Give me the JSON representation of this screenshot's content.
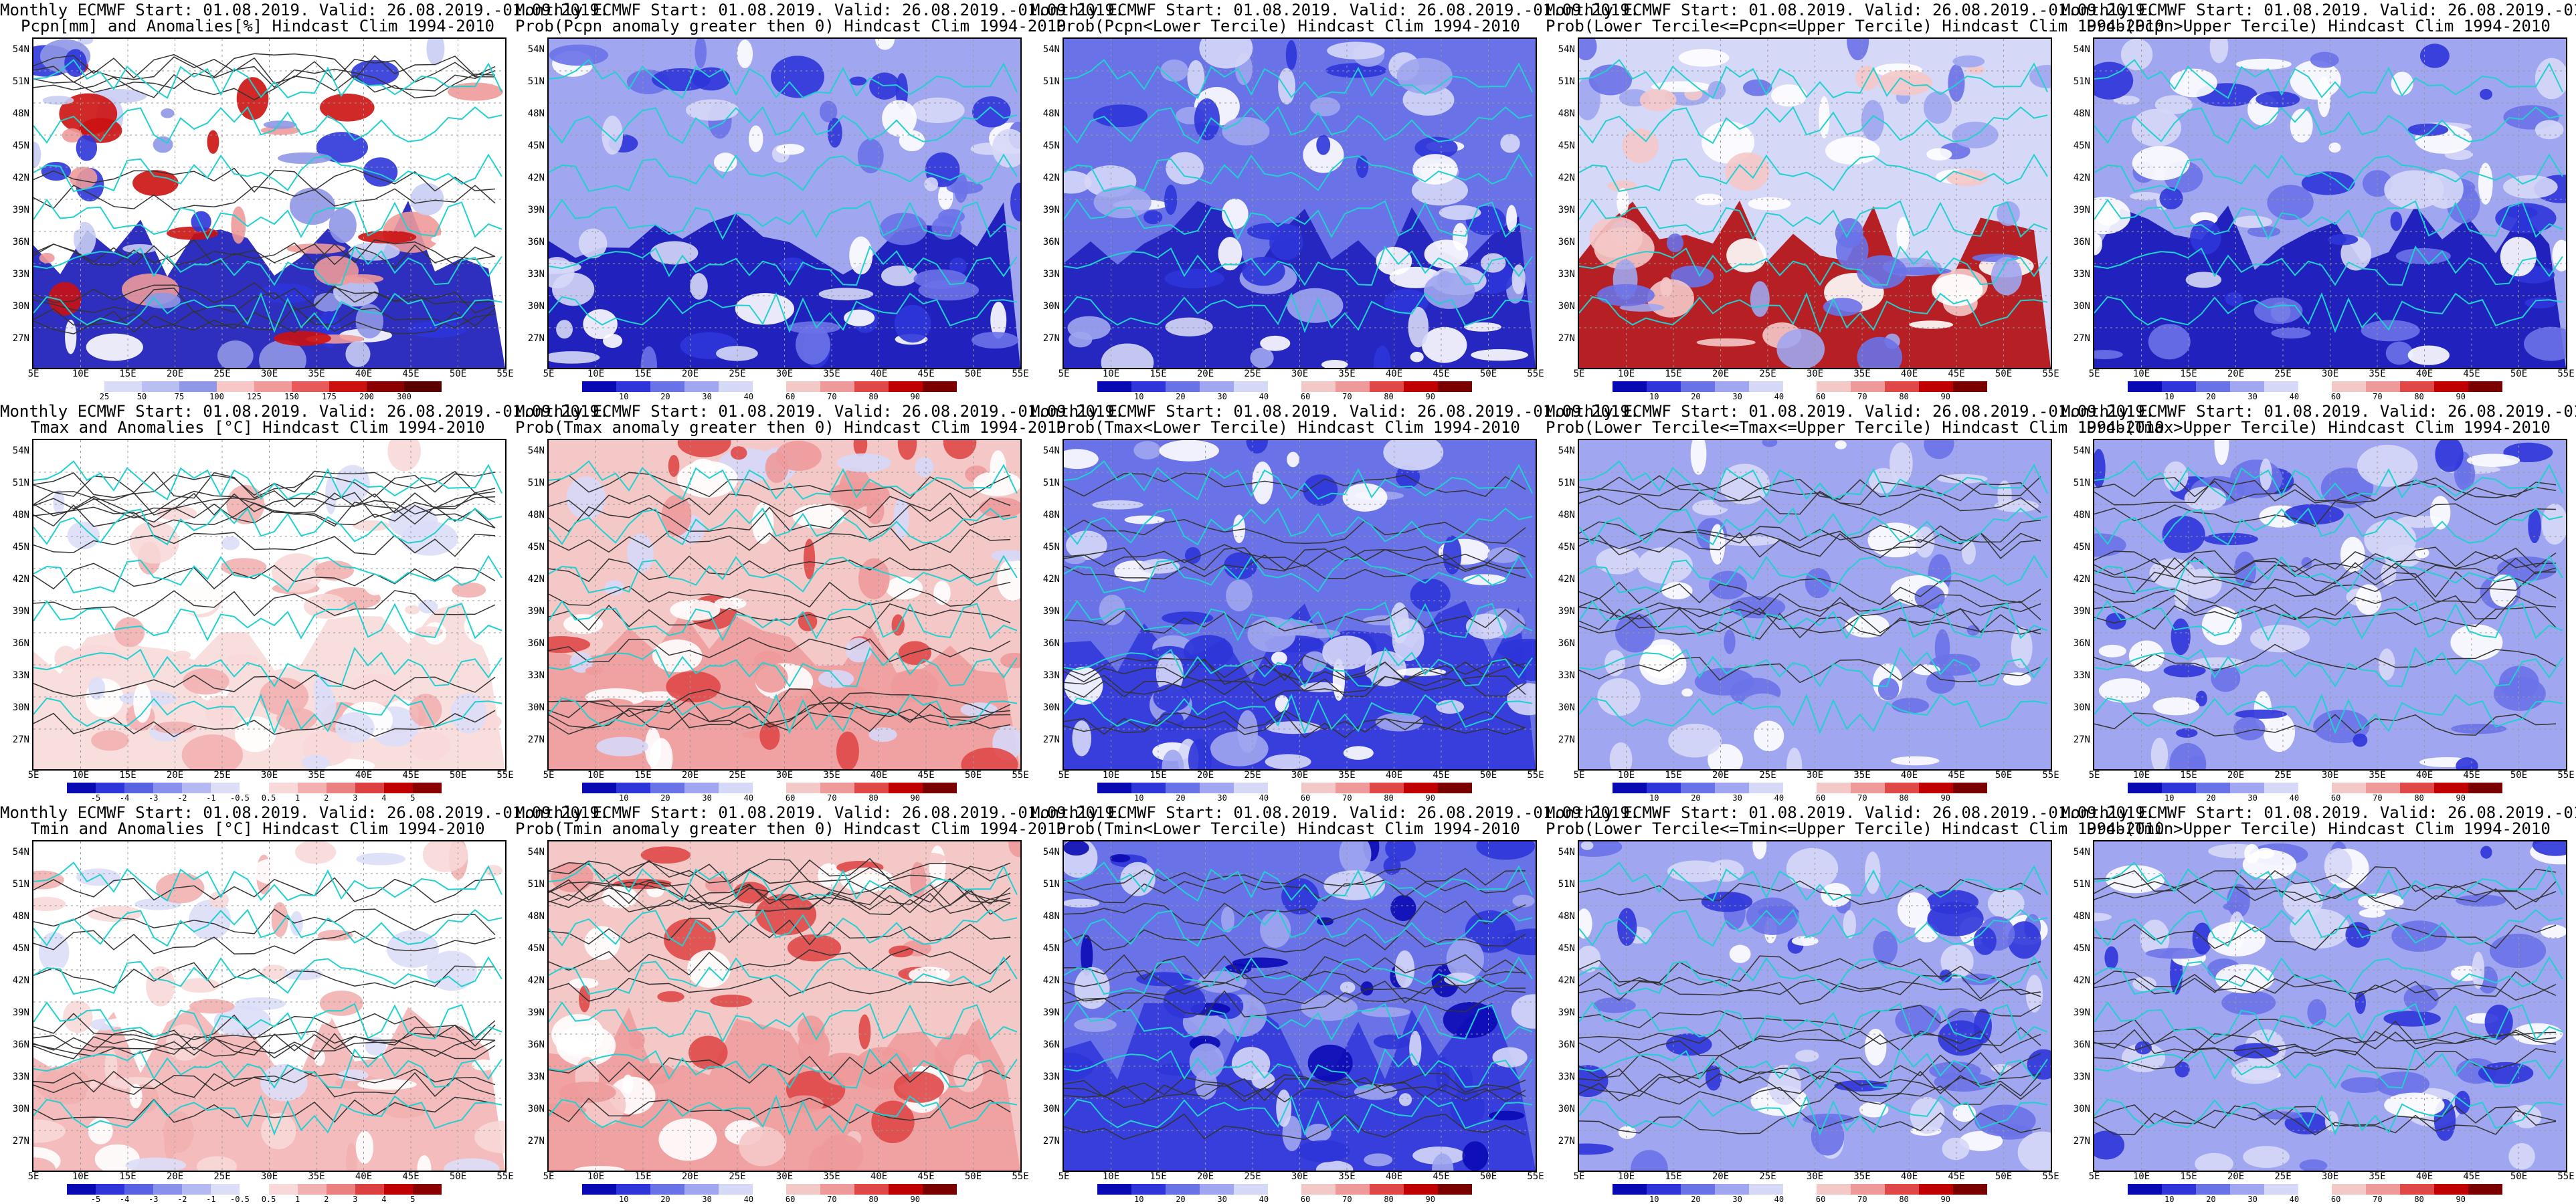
{
  "header_line": "Monthly ECMWF Start: 01.08.2019. Valid: 26.08.2019.-01.09.2019.",
  "lat_labels": [
    "54N",
    "51N",
    "48N",
    "45N",
    "42N",
    "39N",
    "36N",
    "33N",
    "30N",
    "27N"
  ],
  "lon_labels": [
    "5E",
    "10E",
    "15E",
    "20E",
    "25E",
    "30E",
    "35E",
    "40E",
    "45E",
    "50E",
    "55E"
  ],
  "colorbars": {
    "pcpn": {
      "ticks": [
        "25",
        "50",
        "75",
        "100",
        "125",
        "150",
        "175",
        "200",
        "300"
      ],
      "colors": [
        "#ffffff",
        "#d9dcf6",
        "#b9bff0",
        "#8f97e6",
        "#f7c7c7",
        "#f09a9a",
        "#e85a5a",
        "#cc1111",
        "#8b0000",
        "#5a0000"
      ]
    },
    "prob": {
      "ticks": [
        "10",
        "20",
        "30",
        "40",
        "60",
        "70",
        "80",
        "90"
      ],
      "colors": [
        "#0a0ab4",
        "#2e35d9",
        "#6a72e8",
        "#a0a6f0",
        "#d6d8f7",
        "#ffffff",
        "#f5c8c8",
        "#ee9a9a",
        "#e04848",
        "#c00000",
        "#7a0000"
      ]
    },
    "anom": {
      "ticks": [
        "-5",
        "-4",
        "-3",
        "-2",
        "-1",
        "-0.5",
        "0.5",
        "1",
        "2",
        "3",
        "4",
        "5"
      ],
      "colors": [
        "#0a0ab4",
        "#2e35d9",
        "#5a62e4",
        "#8a91ec",
        "#b4b9f2",
        "#dcdef8",
        "#ffffff",
        "#f8d8d8",
        "#f2b0b0",
        "#ea8080",
        "#dc4040",
        "#c00000",
        "#8a0000"
      ]
    }
  },
  "panels": [
    {
      "title": "Pcpn[mm] and Anomalies[%] Hindcast Clim 1994-2010",
      "cbar": "pcpn",
      "base": "#ffffff",
      "patch_colors": [
        "#c9cdf3",
        "#8f97e6",
        "#2e35d9",
        "#ee9a9a",
        "#cc1111",
        "#ffffff"
      ],
      "south_color": "#0a0ab4",
      "contours": true
    },
    {
      "title": "Prob(Pcpn anomaly greater then 0) Hindcast Clim 1994-2010",
      "cbar": "prob",
      "base": "#a0a6f0",
      "patch_colors": [
        "#d6d8f7",
        "#6a72e8",
        "#2e35d9",
        "#ffffff"
      ],
      "south_color": "#0a0ab4",
      "contours": false
    },
    {
      "title": "Prob(Pcpn<Lower Tercile) Hindcast Clim 1994-2010",
      "cbar": "prob",
      "base": "#6a72e8",
      "patch_colors": [
        "#ffffff",
        "#d6d8f7",
        "#a0a6f0",
        "#2e35d9"
      ],
      "south_color": "#1a1ab8",
      "contours": false
    },
    {
      "title": "Prob(Lower Tercile<=Pcpn<=Upper Tercile) Hindcast Clim 1994-2010",
      "cbar": "prob",
      "base": "#d6d8f7",
      "patch_colors": [
        "#ffffff",
        "#a0a6f0",
        "#6a72e8",
        "#f5c8c8"
      ],
      "south_color": "#b00000",
      "contours": false
    },
    {
      "title": "Prob(Pcpn>Upper Tercile) Hindcast Clim 1994-2010",
      "cbar": "prob",
      "base": "#a0a6f0",
      "patch_colors": [
        "#ffffff",
        "#d6d8f7",
        "#6a72e8",
        "#2e35d9"
      ],
      "south_color": "#0a0ab4",
      "contours": false
    },
    {
      "title": "Tmax and Anomalies [°C] Hindcast Clim 1994-2010",
      "cbar": "anom",
      "base": "#ffffff",
      "patch_colors": [
        "#f8d8d8",
        "#f2b0b0",
        "#dcdef8",
        "#ffffff"
      ],
      "south_color": "#f8d8d8",
      "contours": true
    },
    {
      "title": "Prob(Tmax anomaly greater then 0) Hindcast Clim 1994-2010",
      "cbar": "prob",
      "base": "#f5c8c8",
      "patch_colors": [
        "#ee9a9a",
        "#ffffff",
        "#d6d8f7",
        "#e04848"
      ],
      "south_color": "#ee9a9a",
      "contours": true
    },
    {
      "title": "Prob(Tmax<Lower Tercile) Hindcast Clim 1994-2010",
      "cbar": "prob",
      "base": "#6a72e8",
      "patch_colors": [
        "#a0a6f0",
        "#2e35d9",
        "#d6d8f7",
        "#ffffff"
      ],
      "south_color": "#2e35d9",
      "contours": true
    },
    {
      "title": "Prob(Lower Tercile<=Tmax<=Upper Tercile) Hindcast Clim 1994-2010",
      "cbar": "prob",
      "base": "#a0a6f0",
      "patch_colors": [
        "#d6d8f7",
        "#6a72e8",
        "#ffffff",
        "#a0a6f0"
      ],
      "south_color": "#a0a6f0",
      "contours": true
    },
    {
      "title": "Prob(Tmax>Upper Tercile) Hindcast Clim 1994-2010",
      "cbar": "prob",
      "base": "#a0a6f0",
      "patch_colors": [
        "#d6d8f7",
        "#6a72e8",
        "#ffffff",
        "#2e35d9"
      ],
      "south_color": "#a0a6f0",
      "contours": true
    },
    {
      "title": "Tmin and Anomalies [°C] Hindcast Clim 1994-2010",
      "cbar": "anom",
      "base": "#ffffff",
      "patch_colors": [
        "#f8d8d8",
        "#f2b0b0",
        "#dcdef8",
        "#ffffff"
      ],
      "south_color": "#f2b0b0",
      "contours": true
    },
    {
      "title": "Prob(Tmin anomaly greater then 0) Hindcast Clim 1994-2010",
      "cbar": "prob",
      "base": "#f5c8c8",
      "patch_colors": [
        "#ee9a9a",
        "#ffffff",
        "#e04848",
        "#f5c8c8"
      ],
      "south_color": "#ee9a9a",
      "contours": true
    },
    {
      "title": "Prob(Tmin<Lower Tercile) Hindcast Clim 1994-2010",
      "cbar": "prob",
      "base": "#6a72e8",
      "patch_colors": [
        "#2e35d9",
        "#a0a6f0",
        "#0a0ab4",
        "#d6d8f7"
      ],
      "south_color": "#2e35d9",
      "contours": true
    },
    {
      "title": "Prob(Lower Tercile<=Tmin<=Upper Tercile) Hindcast Clim 1994-2010",
      "cbar": "prob",
      "base": "#a0a6f0",
      "patch_colors": [
        "#6a72e8",
        "#d6d8f7",
        "#ffffff",
        "#2e35d9"
      ],
      "south_color": "#a0a6f0",
      "contours": true
    },
    {
      "title": "Prob(Tmin>Upper Tercile) Hindcast Clim 1994-2010",
      "cbar": "prob",
      "base": "#a0a6f0",
      "patch_colors": [
        "#d6d8f7",
        "#6a72e8",
        "#ffffff",
        "#2e35d9"
      ],
      "south_color": "#a0a6f0",
      "contours": true
    }
  ]
}
